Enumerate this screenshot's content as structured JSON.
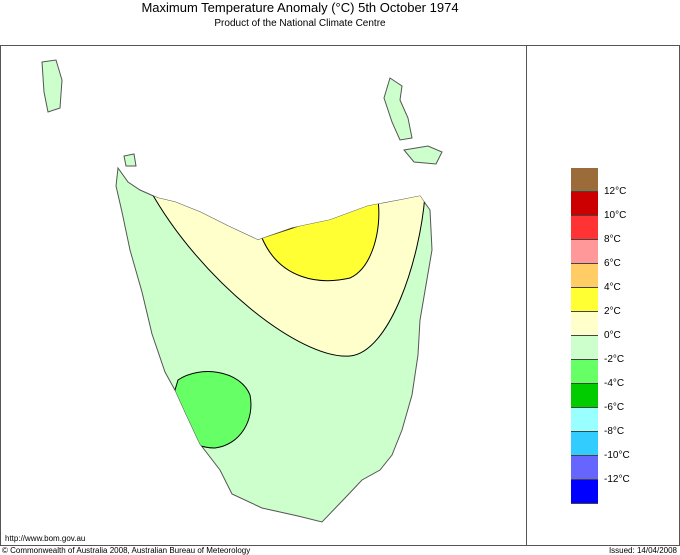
{
  "title": "Maximum Temperature Anomaly (°C)  5th October 1974",
  "subtitle": "Product of the National Climate Centre",
  "url_text": "http://www.bom.gov.au",
  "copyright": "© Commonwealth of Australia 2008, Australian Bureau of Meteorology",
  "issued": "Issued: 14/04/2008",
  "legend": {
    "colors": [
      "#9c6b3a",
      "#cc0000",
      "#ff3333",
      "#ff9999",
      "#ffcc66",
      "#ffff33",
      "#ffffcc",
      "#ccffcc",
      "#66ff66",
      "#00cc00",
      "#99ffff",
      "#33ccff",
      "#6666ff",
      "#0000ff"
    ],
    "labels": [
      "12°C",
      "10°C",
      "8°C",
      "6°C",
      "4°C",
      "2°C",
      "0°C",
      "-2°C",
      "-4°C",
      "-6°C",
      "-8°C",
      "-10°C",
      "-12°C"
    ]
  },
  "map_colors": {
    "land": "#ccffcc",
    "anomaly_0_2": "#ffffcc",
    "anomaly_2_4": "#ffff33",
    "anomaly_m4_m2": "#66ff66"
  }
}
